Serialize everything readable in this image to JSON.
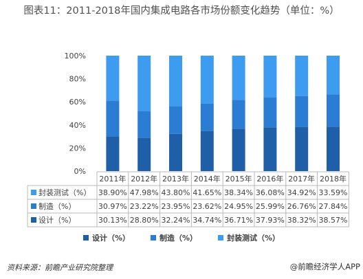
{
  "title": "图表11：2011-2018年国内集成电路各市场份额变化趋势（单位：%）",
  "source": "资料来源：前瞻产业研究院整理",
  "brand": "@前瞻经济学人APP",
  "chart_data": {
    "type": "bar",
    "stacked": true,
    "percent_stacked": true,
    "categories": [
      "2011年",
      "2012年",
      "2013年",
      "2014年",
      "2015年",
      "2016年",
      "2017年",
      "2018年"
    ],
    "y_ticks": [
      "0%",
      "20%",
      "40%",
      "60%",
      "80%",
      "100%"
    ],
    "ylim": [
      0,
      100
    ],
    "grid": false,
    "legend_position": "bottom",
    "series": [
      {
        "name": "设计（%）",
        "color": "#1f5fa8",
        "values": [
          30.13,
          28.8,
          32.24,
          34.74,
          36.71,
          37.93,
          38.32,
          38.57
        ],
        "labels": [
          "30.13%",
          "28.80%",
          "32.24%",
          "34.74%",
          "36.71%",
          "37.93%",
          "38.32%",
          "38.57%"
        ]
      },
      {
        "name": "制造（%）",
        "color": "#2b7cd3",
        "values": [
          30.97,
          23.22,
          23.95,
          23.62,
          24.95,
          25.99,
          26.76,
          27.84
        ],
        "labels": [
          "30.97%",
          "23.22%",
          "23.95%",
          "23.62%",
          "24.95%",
          "25.99%",
          "26.76%",
          "27.84%"
        ]
      },
      {
        "name": "封装测试（%）",
        "color": "#3d9bf0",
        "values": [
          38.9,
          47.98,
          43.8,
          41.65,
          38.34,
          36.08,
          34.92,
          33.59
        ],
        "labels": [
          "38.90%",
          "47.98%",
          "43.80%",
          "41.65%",
          "38.34%",
          "36.08%",
          "34.92%",
          "33.59%"
        ]
      }
    ],
    "table_row_order": [
      2,
      1,
      0
    ]
  }
}
